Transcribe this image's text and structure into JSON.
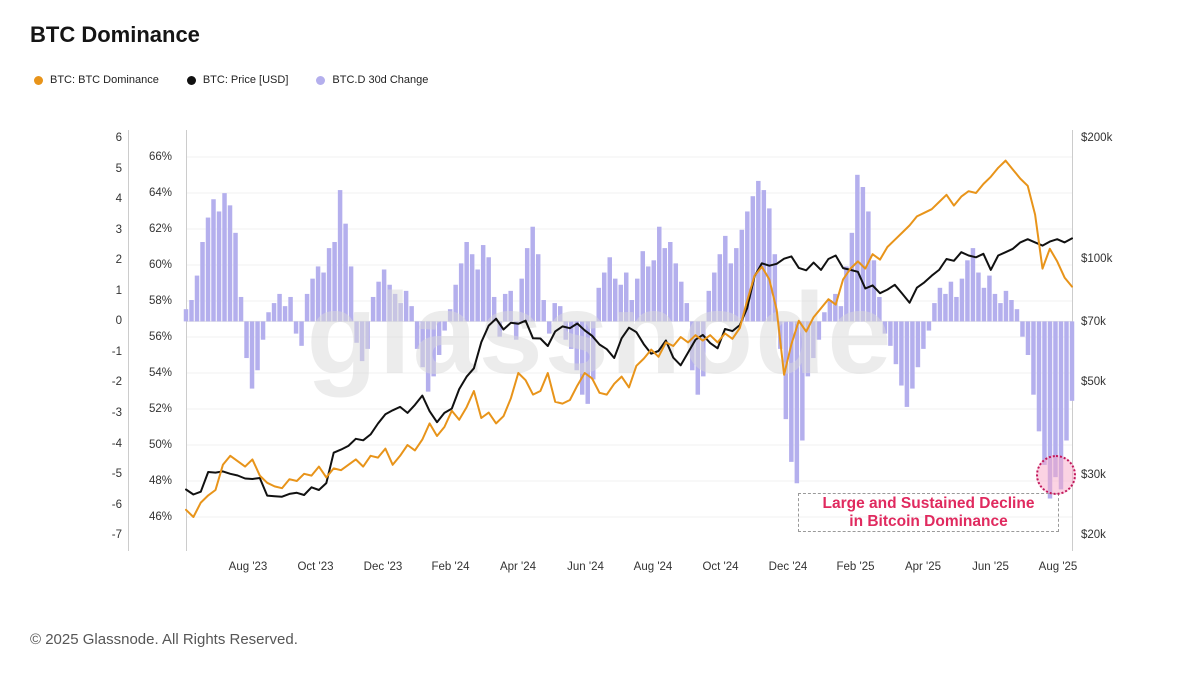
{
  "title": "BTC Dominance",
  "footer": "© 2025 Glassnode. All Rights Reserved.",
  "watermark": "glassnode",
  "legend": [
    {
      "label": "BTC: BTC Dominance",
      "color": "#E8941A"
    },
    {
      "label": "BTC: Price [USD]",
      "color": "#111111"
    },
    {
      "label": "BTC.D 30d Change",
      "color": "#B4AFED"
    }
  ],
  "annotation": {
    "line1": "Large and Sustained Decline",
    "line2": "in Bitcoin Dominance",
    "color": "#E02A5F",
    "circle_fill": "rgba(248,168,200,0.5)",
    "circle_border": "#c2185b"
  },
  "axes": {
    "left_change": {
      "ticks": [
        "6",
        "5",
        "4",
        "3",
        "2",
        "1",
        "0",
        "-1",
        "-2",
        "-3",
        "-4",
        "-5",
        "-6",
        "-7"
      ],
      "values": [
        6,
        5,
        4,
        3,
        2,
        1,
        0,
        -1,
        -2,
        -3,
        -4,
        -5,
        -6,
        -7
      ]
    },
    "left_dominance": {
      "ticks": [
        "66%",
        "64%",
        "62%",
        "60%",
        "58%",
        "56%",
        "54%",
        "52%",
        "50%",
        "48%",
        "46%"
      ],
      "values": [
        66,
        64,
        62,
        60,
        58,
        56,
        54,
        52,
        50,
        48,
        46
      ]
    },
    "right_price": {
      "scale": "log",
      "ticks": [
        "$200k",
        "$100k",
        "$70k",
        "$50k",
        "$30k",
        "$20k"
      ],
      "values_k": [
        200,
        100,
        70,
        50,
        30,
        20
      ]
    },
    "x": {
      "ticks": [
        "Aug '23",
        "Oct '23",
        "Dec '23",
        "Feb '24",
        "Apr '24",
        "Jun '24",
        "Aug '24",
        "Oct '24",
        "Dec '24",
        "Feb '25",
        "Apr '25",
        "Jun '25",
        "Aug '25"
      ]
    }
  },
  "chart_data": {
    "type": "mixed",
    "x_start": "2023-06-05",
    "x_end": "2025-08-15",
    "grid": "horizontal only",
    "legend_position": "top-left",
    "series": [
      {
        "name": "BTC: BTC Dominance",
        "type": "line",
        "color": "#E8941A",
        "axis": "dominance_pct",
        "unit": "%",
        "range": [
          46,
          66
        ],
        "sample_days": 6.7,
        "values": [
          46.4,
          46.0,
          46.8,
          47.2,
          47.5,
          48.9,
          49.4,
          49.1,
          48.8,
          49.2,
          48.3,
          47.9,
          47.7,
          47.6,
          48.1,
          48.0,
          48.4,
          48.3,
          48.8,
          48.2,
          48.7,
          48.6,
          48.9,
          49.2,
          48.8,
          49.4,
          49.3,
          49.8,
          48.9,
          49.4,
          50.0,
          49.7,
          50.3,
          51.2,
          50.5,
          51.0,
          51.9,
          51.4,
          52.1,
          53.0,
          51.5,
          51.8,
          51.2,
          51.6,
          52.6,
          54.0,
          53.6,
          52.8,
          53.0,
          54.0,
          52.4,
          52.3,
          52.5,
          53.3,
          54.0,
          53.7,
          52.9,
          52.8,
          53.4,
          53.8,
          53.2,
          54.4,
          54.8,
          55.3,
          54.9,
          55.7,
          55.5,
          56.0,
          55.7,
          56.1,
          55.8,
          56.1,
          55.7,
          56.2,
          55.9,
          56.5,
          58.0,
          59.4,
          59.9,
          59.2,
          57.5,
          53.9,
          55.6,
          56.9,
          56.3,
          57.1,
          57.6,
          58.1,
          57.8,
          59.2,
          59.8,
          60.2,
          59.8,
          60.6,
          60.3,
          61.0,
          61.4,
          61.8,
          62.2,
          62.7,
          62.9,
          63.1,
          63.5,
          63.9,
          63.3,
          63.8,
          64.1,
          64.0,
          64.5,
          64.9,
          65.4,
          65.8,
          65.3,
          64.8,
          64.4,
          62.8,
          59.8,
          60.9,
          60.2,
          59.3,
          58.8
        ]
      },
      {
        "name": "BTC: Price [USD]",
        "type": "line",
        "color": "#111111",
        "axis": "price_usd",
        "unit": "$k",
        "range_k": [
          20,
          200
        ],
        "scale": "log",
        "sample_days": 6.7,
        "values": [
          27.2,
          26.3,
          26.8,
          30.5,
          30.4,
          30.6,
          30.2,
          29.9,
          29.3,
          29.2,
          29.4,
          26.1,
          26.0,
          25.9,
          26.4,
          26.6,
          26.2,
          27.6,
          27.1,
          28.4,
          33.9,
          34.5,
          35.2,
          36.6,
          36.3,
          37.5,
          39.8,
          41.9,
          42.8,
          43.6,
          42.2,
          44.1,
          46.4,
          42.6,
          40.1,
          42.2,
          43.2,
          48.1,
          51.5,
          54.0,
          62.5,
          68.6,
          71.3,
          67.1,
          69.7,
          69.3,
          70.5,
          63.9,
          63.8,
          61.2,
          66.4,
          68.3,
          67.6,
          69.4,
          66.8,
          64.8,
          61.7,
          60.1,
          57.2,
          63.9,
          67.8,
          66.1,
          61.8,
          58.6,
          59.5,
          63.1,
          57.3,
          54.9,
          59.0,
          63.4,
          65.1,
          62.2,
          60.4,
          67.3,
          66.5,
          68.8,
          75.6,
          90.6,
          97.6,
          96.3,
          97.3,
          100.2,
          101.5,
          95.1,
          93.8,
          98.0,
          94.0,
          100.0,
          102.0,
          95.0,
          94.0,
          93.0,
          84.6,
          86.1,
          82.4,
          84.1,
          86.4,
          82.2,
          78.1,
          85.0,
          87.6,
          91.0,
          94.0,
          100.0,
          99.0,
          104.0,
          102.0,
          101.0,
          103.0,
          94.0,
          102.0,
          104.0,
          106.0,
          110.0,
          112.0,
          110.0,
          108.0,
          110.5,
          112.0,
          110.0,
          112.5
        ]
      },
      {
        "name": "BTC.D 30d Change",
        "type": "bar",
        "color": "#B4AFED",
        "axis": "change_pts",
        "unit": "pct-points",
        "range": [
          -7,
          6
        ],
        "sample_days": 5,
        "values": [
          0.4,
          0.7,
          1.5,
          2.6,
          3.4,
          4.0,
          3.6,
          4.2,
          3.8,
          2.9,
          0.8,
          -1.2,
          -2.2,
          -1.6,
          -0.6,
          0.3,
          0.6,
          0.9,
          0.5,
          0.8,
          -0.4,
          -0.8,
          0.9,
          1.4,
          1.8,
          1.6,
          2.4,
          2.6,
          4.3,
          3.2,
          1.8,
          -0.7,
          -1.3,
          -0.9,
          0.8,
          1.3,
          1.7,
          1.2,
          0.9,
          0.6,
          1.0,
          0.5,
          -0.9,
          -1.5,
          -2.3,
          -1.8,
          -1.1,
          -0.3,
          0.4,
          1.2,
          1.9,
          2.6,
          2.2,
          1.7,
          2.5,
          2.1,
          0.8,
          -0.5,
          0.9,
          1.0,
          -0.6,
          1.4,
          2.4,
          3.1,
          2.2,
          0.7,
          -0.4,
          0.6,
          0.5,
          -0.6,
          -0.9,
          -1.6,
          -2.4,
          -2.7,
          -1.9,
          1.1,
          1.6,
          2.1,
          1.4,
          1.2,
          1.6,
          0.7,
          1.4,
          2.3,
          1.8,
          2.0,
          3.1,
          2.4,
          2.6,
          1.9,
          1.3,
          0.6,
          -1.6,
          -2.4,
          -1.8,
          1.0,
          1.6,
          2.2,
          2.8,
          1.9,
          2.4,
          3.0,
          3.6,
          4.1,
          4.6,
          4.3,
          3.7,
          2.2,
          -0.9,
          -3.2,
          -4.6,
          -5.3,
          -3.9,
          -1.8,
          -1.2,
          -0.6,
          0.3,
          0.7,
          0.9,
          0.5,
          1.8,
          2.9,
          4.8,
          4.4,
          3.6,
          2.0,
          0.8,
          -0.4,
          -0.8,
          -1.4,
          -2.1,
          -2.8,
          -2.2,
          -1.5,
          -0.9,
          -0.3,
          0.6,
          1.1,
          0.9,
          1.3,
          0.8,
          1.4,
          2.0,
          2.4,
          1.6,
          1.1,
          1.5,
          0.9,
          0.6,
          1.0,
          0.7,
          0.4,
          -0.5,
          -1.1,
          -2.4,
          -3.6,
          -4.7,
          -5.8,
          -5.1,
          -5.5,
          -3.9,
          -2.6
        ]
      }
    ]
  }
}
